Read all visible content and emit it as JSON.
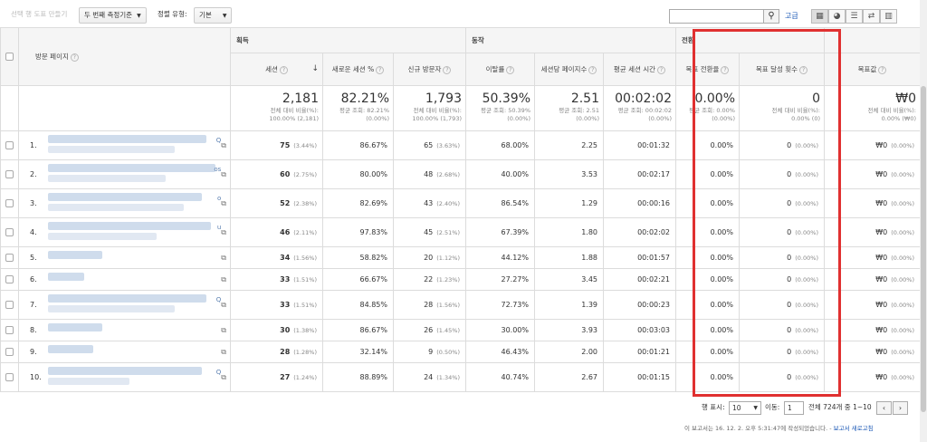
{
  "toolbar": {
    "create_segment": "선택 행 도표 만들기",
    "secondary_dimension": "두 번째 측정기준",
    "sort_type_label": "정렬 유형:",
    "sort_type_value": "기본",
    "advanced_link": "고급",
    "view_icons": [
      "grid-view-icon",
      "pie-view-icon",
      "bar-view-icon",
      "compare-view-icon",
      "pivot-view-icon"
    ]
  },
  "table": {
    "dimension_header": "방문 페이지",
    "groups": {
      "acquisition": "획득",
      "behavior": "동작",
      "conversion": "전환"
    },
    "columns": [
      "세션",
      "새로운 세션 %",
      "신규 방문자",
      "이탈률",
      "세션당 페이지수",
      "평균 세션 시간",
      "목표 전환율",
      "목표 달성 횟수",
      "목표값"
    ],
    "totals": [
      {
        "value": "2,181",
        "sub1": "전체 대비 비율(%):",
        "sub2": "100.00% (2,181)"
      },
      {
        "value": "82.21%",
        "sub1": "평균 조회: 82.21%",
        "sub2": "(0.00%)"
      },
      {
        "value": "1,793",
        "sub1": "전체 대비 비율(%):",
        "sub2": "100.00% (1,793)"
      },
      {
        "value": "50.39%",
        "sub1": "평균 조회: 50.39%",
        "sub2": "(0.00%)"
      },
      {
        "value": "2.51",
        "sub1": "평균 조회: 2.51",
        "sub2": "(0.00%)"
      },
      {
        "value": "00:02:02",
        "sub1": "평균 조회: 00:02:02",
        "sub2": "(0.00%)"
      },
      {
        "value": "0.00%",
        "sub1": "평균 조회: 0.00%",
        "sub2": "(0.00%)"
      },
      {
        "value": "0",
        "sub1": "전체 대비 비율(%):",
        "sub2": "0.00% (0)"
      },
      {
        "value": "₩0",
        "sub1": "전체 대비 비율(%):",
        "sub2": "0.00% (₩0)"
      }
    ],
    "rows": [
      {
        "num": "1.",
        "suffix": "Q",
        "sessions": "75",
        "sessions_pct": "(3.44%)",
        "new_pct": "86.67%",
        "new_users": "65",
        "new_users_pct": "(3.63%)",
        "bounce": "68.00%",
        "pages": "2.25",
        "duration": "00:01:32",
        "conv": "0.00%",
        "goals": "0",
        "goals_pct": "(0.00%)",
        "value": "₩0",
        "value_pct": "(0.00%)"
      },
      {
        "num": "2.",
        "suffix": "os",
        "sessions": "60",
        "sessions_pct": "(2.75%)",
        "new_pct": "80.00%",
        "new_users": "48",
        "new_users_pct": "(2.68%)",
        "bounce": "40.00%",
        "pages": "3.53",
        "duration": "00:02:17",
        "conv": "0.00%",
        "goals": "0",
        "goals_pct": "(0.00%)",
        "value": "₩0",
        "value_pct": "(0.00%)"
      },
      {
        "num": "3.",
        "suffix": "o",
        "sessions": "52",
        "sessions_pct": "(2.38%)",
        "new_pct": "82.69%",
        "new_users": "43",
        "new_users_pct": "(2.40%)",
        "bounce": "86.54%",
        "pages": "1.29",
        "duration": "00:00:16",
        "conv": "0.00%",
        "goals": "0",
        "goals_pct": "(0.00%)",
        "value": "₩0",
        "value_pct": "(0.00%)"
      },
      {
        "num": "4.",
        "suffix": "u",
        "sessions": "46",
        "sessions_pct": "(2.11%)",
        "new_pct": "97.83%",
        "new_users": "45",
        "new_users_pct": "(2.51%)",
        "bounce": "67.39%",
        "pages": "1.80",
        "duration": "00:02:02",
        "conv": "0.00%",
        "goals": "0",
        "goals_pct": "(0.00%)",
        "value": "₩0",
        "value_pct": "(0.00%)"
      },
      {
        "num": "5.",
        "suffix": "",
        "sessions": "34",
        "sessions_pct": "(1.56%)",
        "new_pct": "58.82%",
        "new_users": "20",
        "new_users_pct": "(1.12%)",
        "bounce": "44.12%",
        "pages": "1.88",
        "duration": "00:01:57",
        "conv": "0.00%",
        "goals": "0",
        "goals_pct": "(0.00%)",
        "value": "₩0",
        "value_pct": "(0.00%)"
      },
      {
        "num": "6.",
        "suffix": "",
        "sessions": "33",
        "sessions_pct": "(1.51%)",
        "new_pct": "66.67%",
        "new_users": "22",
        "new_users_pct": "(1.23%)",
        "bounce": "27.27%",
        "pages": "3.45",
        "duration": "00:02:21",
        "conv": "0.00%",
        "goals": "0",
        "goals_pct": "(0.00%)",
        "value": "₩0",
        "value_pct": "(0.00%)"
      },
      {
        "num": "7.",
        "suffix": "Q",
        "sessions": "33",
        "sessions_pct": "(1.51%)",
        "new_pct": "84.85%",
        "new_users": "28",
        "new_users_pct": "(1.56%)",
        "bounce": "72.73%",
        "pages": "1.39",
        "duration": "00:00:23",
        "conv": "0.00%",
        "goals": "0",
        "goals_pct": "(0.00%)",
        "value": "₩0",
        "value_pct": "(0.00%)"
      },
      {
        "num": "8.",
        "suffix": "",
        "sessions": "30",
        "sessions_pct": "(1.38%)",
        "new_pct": "86.67%",
        "new_users": "26",
        "new_users_pct": "(1.45%)",
        "bounce": "30.00%",
        "pages": "3.93",
        "duration": "00:03:03",
        "conv": "0.00%",
        "goals": "0",
        "goals_pct": "(0.00%)",
        "value": "₩0",
        "value_pct": "(0.00%)"
      },
      {
        "num": "9.",
        "suffix": "",
        "sessions": "28",
        "sessions_pct": "(1.28%)",
        "new_pct": "32.14%",
        "new_users": "9",
        "new_users_pct": "(0.50%)",
        "bounce": "46.43%",
        "pages": "2.00",
        "duration": "00:01:21",
        "conv": "0.00%",
        "goals": "0",
        "goals_pct": "(0.00%)",
        "value": "₩0",
        "value_pct": "(0.00%)"
      },
      {
        "num": "10.",
        "suffix": "Q",
        "sessions": "27",
        "sessions_pct": "(1.24%)",
        "new_pct": "88.89%",
        "new_users": "24",
        "new_users_pct": "(1.34%)",
        "bounce": "40.74%",
        "pages": "2.67",
        "duration": "00:01:15",
        "conv": "0.00%",
        "goals": "0",
        "goals_pct": "(0.00%)",
        "value": "₩0",
        "value_pct": "(0.00%)"
      }
    ]
  },
  "pagination": {
    "rows_label": "행 표시:",
    "rows_value": "10",
    "goto_label": "이동:",
    "goto_value": "1",
    "range_text": "전체 724개 중 1~10",
    "prev": "‹",
    "next": "›"
  },
  "footer": {
    "note": "이 보고서는 16. 12. 2. 오후 5:31:47에 작성되었습니다. - ",
    "refresh_link": "보고서 새로고침"
  },
  "colors": {
    "highlight": "#e03030",
    "link": "#1a57b5"
  }
}
